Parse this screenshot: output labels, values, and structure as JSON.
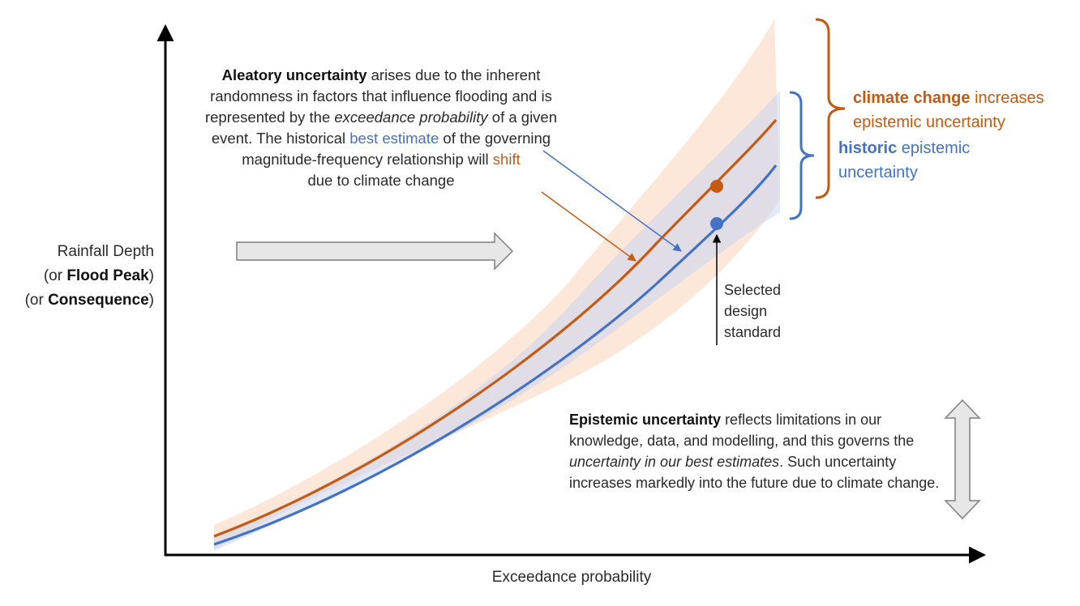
{
  "axes": {
    "x_label": "Exceedance probability",
    "y_label": {
      "line1_bold": "Rainfall Depth",
      "line2_pre": "(or ",
      "line2_bold": "Flood Peak",
      "line2_post": ")",
      "line3_pre": "(or ",
      "line3_bold": "Consequence",
      "line3_post": ")"
    }
  },
  "aleatory_note": {
    "bold": "Aleatory uncertainty",
    "t1": " arises due to the inherent randomness in factors that influence flooding and is represented by the ",
    "italic": "exceedance probability",
    "t2": " of a given event. The historical ",
    "best_estimate": "best estimate",
    "t3": " of the governing magnitude-frequency relationship will ",
    "shift": "shift",
    "t4": " due to climate change"
  },
  "epistemic_note": {
    "bold": "Epistemic uncertainty",
    "t1": " reflects limitations in our knowledge, data, and modelling, and this governs the ",
    "italic": "uncertainty in our best estimates",
    "t2": ". Such uncertainty increases markedly into the future due to climate change."
  },
  "design_standard": {
    "line1": "Selected",
    "line2": "design",
    "line3": "standard"
  },
  "climate_change_bracket": {
    "bold": "climate change",
    "t1": " increases",
    "line2": "epistemic uncertainty"
  },
  "historic_bracket": {
    "bold": "historic",
    "t1": " epistemic",
    "line2": "uncertainty"
  },
  "colors": {
    "historic": "#4472c4",
    "climate": "#c55a11",
    "historic_band": "#d6e0f5",
    "climate_band": "#fbe3d2",
    "axis": "#000000",
    "block_arrow_fill": "#e7e7e7",
    "block_arrow_stroke": "#7f7f7f"
  }
}
